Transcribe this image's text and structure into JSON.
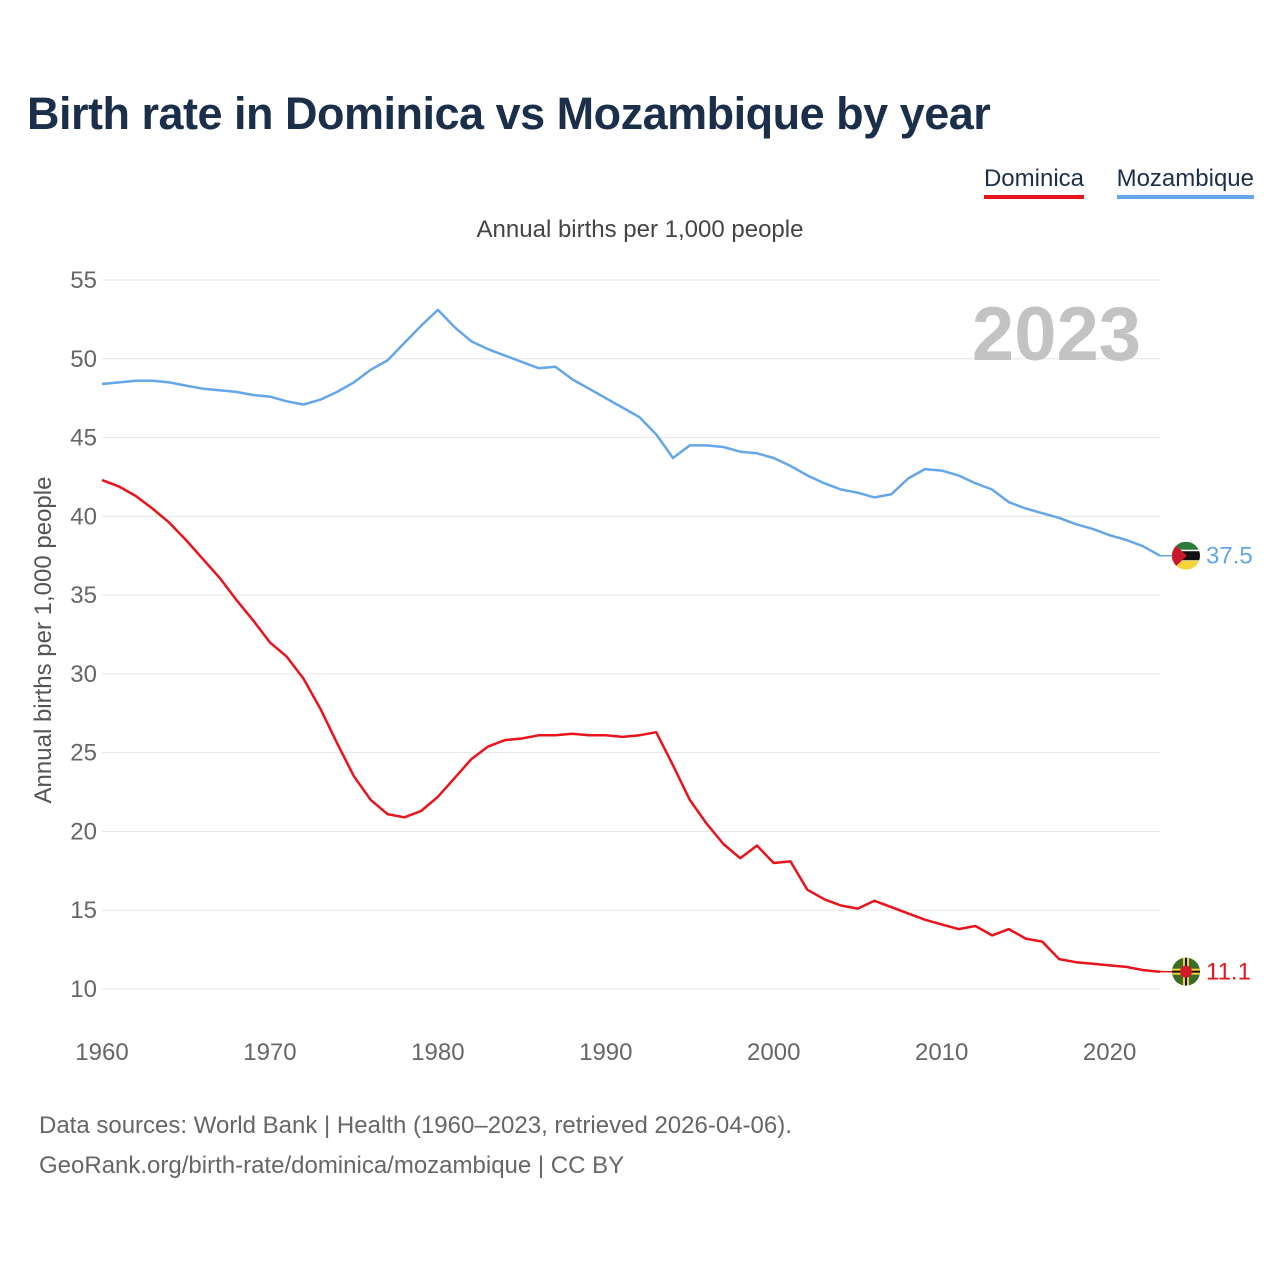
{
  "title": "Birth rate in Dominica vs Mozambique by year",
  "legend": [
    {
      "label": "Dominica",
      "color": "#e8131b"
    },
    {
      "label": "Mozambique",
      "color": "#64a6e8"
    }
  ],
  "subtitle": "Annual births per 1,000 people",
  "year_overlay": "2023",
  "source_line1": "Data sources: World Bank | Health (1960–2023, retrieved 2026-04-06).",
  "source_line2": "GeoRank.org/birth-rate/dominica/mozambique | CC BY",
  "chart_data": {
    "type": "line",
    "title": "Birth rate in Dominica vs Mozambique by year",
    "xlabel": "",
    "ylabel": "Annual births per 1,000 people",
    "xlim": [
      1960,
      2023
    ],
    "ylim": [
      10,
      55
    ],
    "xticks": [
      "1960",
      "1970",
      "1980",
      "1990",
      "2000",
      "2010",
      "2020"
    ],
    "yticks": [
      "10",
      "15",
      "20",
      "25",
      "30",
      "35",
      "40",
      "45",
      "50",
      "55"
    ],
    "grid": true,
    "x": [
      1960,
      1961,
      1962,
      1963,
      1964,
      1965,
      1966,
      1967,
      1968,
      1969,
      1970,
      1971,
      1972,
      1973,
      1974,
      1975,
      1976,
      1977,
      1978,
      1979,
      1980,
      1981,
      1982,
      1983,
      1984,
      1985,
      1986,
      1987,
      1988,
      1989,
      1990,
      1991,
      1992,
      1993,
      1994,
      1995,
      1996,
      1997,
      1998,
      1999,
      2000,
      2001,
      2002,
      2003,
      2004,
      2005,
      2006,
      2007,
      2008,
      2009,
      2010,
      2011,
      2012,
      2013,
      2014,
      2015,
      2016,
      2017,
      2018,
      2019,
      2020,
      2021,
      2022,
      2023
    ],
    "series": [
      {
        "name": "Dominica",
        "color": "#e8131b",
        "end_label": "11.1",
        "values": [
          42.3,
          41.9,
          41.3,
          40.5,
          39.6,
          38.5,
          37.3,
          36.1,
          34.7,
          33.4,
          32.0,
          31.1,
          29.7,
          27.8,
          25.6,
          23.5,
          22.0,
          21.1,
          20.9,
          21.3,
          22.2,
          23.4,
          24.6,
          25.4,
          25.8,
          25.9,
          26.1,
          26.1,
          26.2,
          26.1,
          26.1,
          26.0,
          26.1,
          26.3,
          24.2,
          22.0,
          20.5,
          19.2,
          18.3,
          19.1,
          18.0,
          18.1,
          16.3,
          15.7,
          15.3,
          15.1,
          15.6,
          15.2,
          14.8,
          14.4,
          14.1,
          13.8,
          14.0,
          13.4,
          13.8,
          13.2,
          13.0,
          11.9,
          11.7,
          11.6,
          11.5,
          11.4,
          11.2,
          11.1
        ]
      },
      {
        "name": "Mozambique",
        "color": "#64a6e8",
        "end_label": "37.5",
        "values": [
          48.4,
          48.5,
          48.6,
          48.6,
          48.5,
          48.3,
          48.1,
          48.0,
          47.9,
          47.7,
          47.6,
          47.3,
          47.1,
          47.4,
          47.9,
          48.5,
          49.3,
          49.9,
          51.0,
          52.1,
          53.1,
          52.0,
          51.1,
          50.6,
          50.2,
          49.8,
          49.4,
          49.5,
          48.7,
          48.1,
          47.5,
          46.9,
          46.3,
          45.2,
          43.7,
          44.5,
          44.5,
          44.4,
          44.1,
          44.0,
          43.7,
          43.2,
          42.6,
          42.1,
          41.7,
          41.5,
          41.2,
          41.4,
          42.4,
          43.0,
          42.9,
          42.6,
          42.1,
          41.7,
          40.9,
          40.5,
          40.2,
          39.9,
          39.5,
          39.2,
          38.8,
          38.5,
          38.1,
          37.5
        ]
      }
    ]
  }
}
